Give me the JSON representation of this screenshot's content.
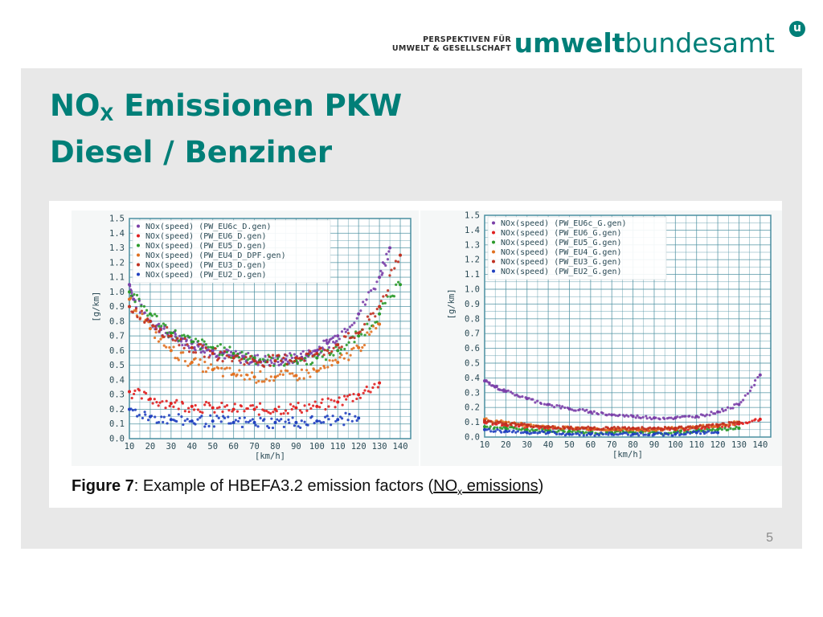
{
  "logo": {
    "tagline_line1": "PERSPEKTIVEN FÜR",
    "tagline_line2": "UMWELT & GESELLSCHAFT",
    "brand_bold": "umwelt",
    "brand_regular": "bundesamt",
    "mark": "u"
  },
  "slide": {
    "title_part1": "NO",
    "title_sub": "X",
    "title_part2": " Emissionen PKW",
    "title_line2": "Diesel / Benziner",
    "page_number": "5"
  },
  "figure": {
    "caption_label": "Figure 7",
    "caption_text": ": Example of HBEFA3.2 emission factors (",
    "caption_nox": "NO",
    "caption_nox_sub": "x",
    "caption_rest": " emissions",
    "caption_close": ")"
  },
  "colors": {
    "brand": "#007f78",
    "grid": "#4a8fa0",
    "eu6c": "#7a3fa8",
    "eu6": "#e02020",
    "eu5": "#2a9a2a",
    "eu4": "#e07020",
    "eu3": "#c03020",
    "eu2": "#2040c0"
  },
  "chart_data": [
    {
      "type": "scatter",
      "title": "",
      "xlabel": "[km/h]",
      "ylabel": "[g/km]",
      "xlim": [
        10,
        145
      ],
      "ylim": [
        0,
        1.5
      ],
      "xticks": [
        10,
        20,
        30,
        40,
        50,
        60,
        70,
        80,
        90,
        100,
        110,
        120,
        130,
        140
      ],
      "yticks": [
        0.0,
        0.1,
        0.2,
        0.3,
        0.4,
        0.5,
        0.6,
        0.7,
        0.8,
        0.9,
        1.0,
        1.1,
        1.2,
        1.3,
        1.4,
        1.5
      ],
      "grid": true,
      "legend_position": "top-left",
      "series": [
        {
          "name": "NOx(speed) (PW_EU6c_D.gen)",
          "color": "#7a3fa8",
          "x": [
            10,
            12,
            20,
            25,
            30,
            35,
            40,
            45,
            50,
            55,
            60,
            65,
            70,
            75,
            80,
            85,
            90,
            95,
            100,
            105,
            110,
            120,
            130,
            135
          ],
          "y": [
            1.05,
            0.95,
            0.8,
            0.75,
            0.7,
            0.68,
            0.65,
            0.62,
            0.6,
            0.58,
            0.56,
            0.55,
            0.54,
            0.53,
            0.53,
            0.54,
            0.55,
            0.57,
            0.6,
            0.65,
            0.7,
            0.85,
            1.1,
            1.3
          ]
        },
        {
          "name": "NOx(speed) (PW_EU6_D.gen)",
          "color": "#e02020",
          "x": [
            10,
            20,
            30,
            40,
            50,
            60,
            70,
            80,
            90,
            100,
            110,
            120,
            130
          ],
          "y": [
            0.32,
            0.27,
            0.24,
            0.22,
            0.21,
            0.2,
            0.2,
            0.2,
            0.21,
            0.22,
            0.25,
            0.3,
            0.38
          ]
        },
        {
          "name": "NOx(speed) (PW_EU5_D.gen)",
          "color": "#2a9a2a",
          "x": [
            10,
            20,
            30,
            40,
            50,
            60,
            70,
            80,
            90,
            100,
            110,
            120,
            130,
            140
          ],
          "y": [
            1.0,
            0.85,
            0.72,
            0.66,
            0.62,
            0.58,
            0.55,
            0.53,
            0.53,
            0.55,
            0.6,
            0.7,
            0.85,
            1.05
          ]
        },
        {
          "name": "NOx(speed) (PW_EU4_D_DPF.gen)",
          "color": "#e07020",
          "x": [
            10,
            20,
            30,
            40,
            50,
            60,
            70,
            80,
            90,
            100,
            110,
            120,
            130
          ],
          "y": [
            0.95,
            0.75,
            0.6,
            0.52,
            0.47,
            0.44,
            0.42,
            0.42,
            0.43,
            0.46,
            0.52,
            0.62,
            0.78
          ]
        },
        {
          "name": "NOx(speed) (PW_EU3_D.gen)",
          "color": "#c03020",
          "x": [
            10,
            20,
            30,
            40,
            50,
            60,
            70,
            80,
            90,
            100,
            110,
            120,
            130,
            140
          ],
          "y": [
            0.9,
            0.8,
            0.7,
            0.62,
            0.58,
            0.55,
            0.53,
            0.53,
            0.55,
            0.58,
            0.64,
            0.72,
            0.9,
            1.25
          ]
        },
        {
          "name": "NOx(speed) (PW_EU2_D.gen)",
          "color": "#2040c0",
          "x": [
            10,
            20,
            30,
            40,
            50,
            60,
            70,
            80,
            90,
            100,
            110,
            120
          ],
          "y": [
            0.2,
            0.15,
            0.13,
            0.12,
            0.12,
            0.11,
            0.11,
            0.11,
            0.11,
            0.12,
            0.13,
            0.14
          ]
        }
      ]
    },
    {
      "type": "scatter",
      "title": "",
      "xlabel": "[km/h]",
      "ylabel": "[g/km]",
      "xlim": [
        10,
        145
      ],
      "ylim": [
        0,
        1.5
      ],
      "xticks": [
        10,
        20,
        30,
        40,
        50,
        60,
        70,
        80,
        90,
        100,
        110,
        120,
        130,
        140
      ],
      "yticks": [
        0.0,
        0.1,
        0.2,
        0.3,
        0.4,
        0.5,
        0.6,
        0.7,
        0.8,
        0.9,
        1.0,
        1.1,
        1.2,
        1.3,
        1.4,
        1.5
      ],
      "grid": true,
      "legend_position": "top-left",
      "series": [
        {
          "name": "NOx(speed) (PW_EU6c_G.gen)",
          "color": "#7a3fa8",
          "x": [
            10,
            15,
            20,
            30,
            40,
            50,
            60,
            70,
            80,
            90,
            100,
            110,
            120,
            130,
            140
          ],
          "y": [
            0.38,
            0.34,
            0.31,
            0.26,
            0.22,
            0.19,
            0.17,
            0.15,
            0.14,
            0.13,
            0.13,
            0.14,
            0.17,
            0.22,
            0.42
          ]
        },
        {
          "name": "NOx(speed) (PW_EU6_G.gen)",
          "color": "#e02020",
          "x": [
            10,
            20,
            30,
            40,
            50,
            60,
            70,
            80,
            90,
            100,
            110,
            120,
            130,
            140
          ],
          "y": [
            0.1,
            0.08,
            0.07,
            0.06,
            0.06,
            0.05,
            0.05,
            0.05,
            0.05,
            0.05,
            0.06,
            0.07,
            0.09,
            0.12
          ]
        },
        {
          "name": "NOx(speed) (PW_EU5_G.gen)",
          "color": "#2a9a2a",
          "x": [
            10,
            20,
            30,
            40,
            50,
            60,
            70,
            80,
            90,
            100,
            110,
            120,
            130
          ],
          "y": [
            0.07,
            0.06,
            0.05,
            0.04,
            0.04,
            0.03,
            0.03,
            0.03,
            0.03,
            0.03,
            0.04,
            0.05,
            0.06
          ]
        },
        {
          "name": "NOx(speed) (PW_EU4_G.gen)",
          "color": "#e07020",
          "x": [
            10,
            20,
            30,
            40,
            50,
            60,
            70,
            80,
            90,
            100,
            110,
            120,
            130
          ],
          "y": [
            0.12,
            0.1,
            0.08,
            0.07,
            0.06,
            0.06,
            0.05,
            0.05,
            0.05,
            0.06,
            0.07,
            0.08,
            0.1
          ]
        },
        {
          "name": "NOx(speed) (PW_EU3_G.gen)",
          "color": "#c03020",
          "x": [
            10,
            20,
            30,
            40,
            50,
            60,
            70,
            80,
            90,
            100,
            110,
            120,
            130
          ],
          "y": [
            0.11,
            0.09,
            0.08,
            0.07,
            0.06,
            0.06,
            0.06,
            0.06,
            0.06,
            0.06,
            0.07,
            0.08,
            0.1
          ]
        },
        {
          "name": "NOx(speed) (PW_EU2_G.gen)",
          "color": "#2040c0",
          "x": [
            10,
            20,
            30,
            40,
            50,
            60,
            70,
            80,
            90,
            100,
            110,
            120
          ],
          "y": [
            0.05,
            0.04,
            0.03,
            0.03,
            0.02,
            0.02,
            0.02,
            0.02,
            0.02,
            0.02,
            0.03,
            0.03
          ]
        }
      ]
    }
  ]
}
